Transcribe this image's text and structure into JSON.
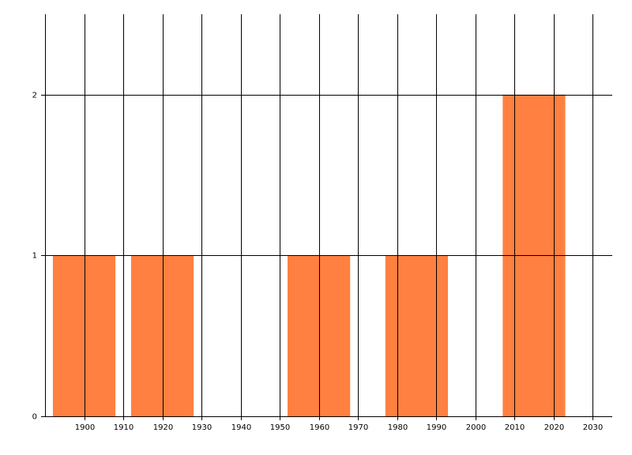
{
  "chart_data": {
    "type": "bar",
    "x": [
      1900,
      1920,
      1960,
      1985,
      2015
    ],
    "values": [
      1,
      1,
      1,
      1,
      2
    ],
    "color": "#ff8040",
    "xlim": [
      1890,
      2035
    ],
    "xticks": [
      1900,
      1910,
      1920,
      1930,
      1940,
      1950,
      1960,
      1970,
      1980,
      1990,
      2000,
      2010,
      2020,
      2030
    ],
    "ylim": [
      0,
      2.5
    ],
    "yticks": [
      0,
      1,
      2
    ],
    "grid": true
  }
}
